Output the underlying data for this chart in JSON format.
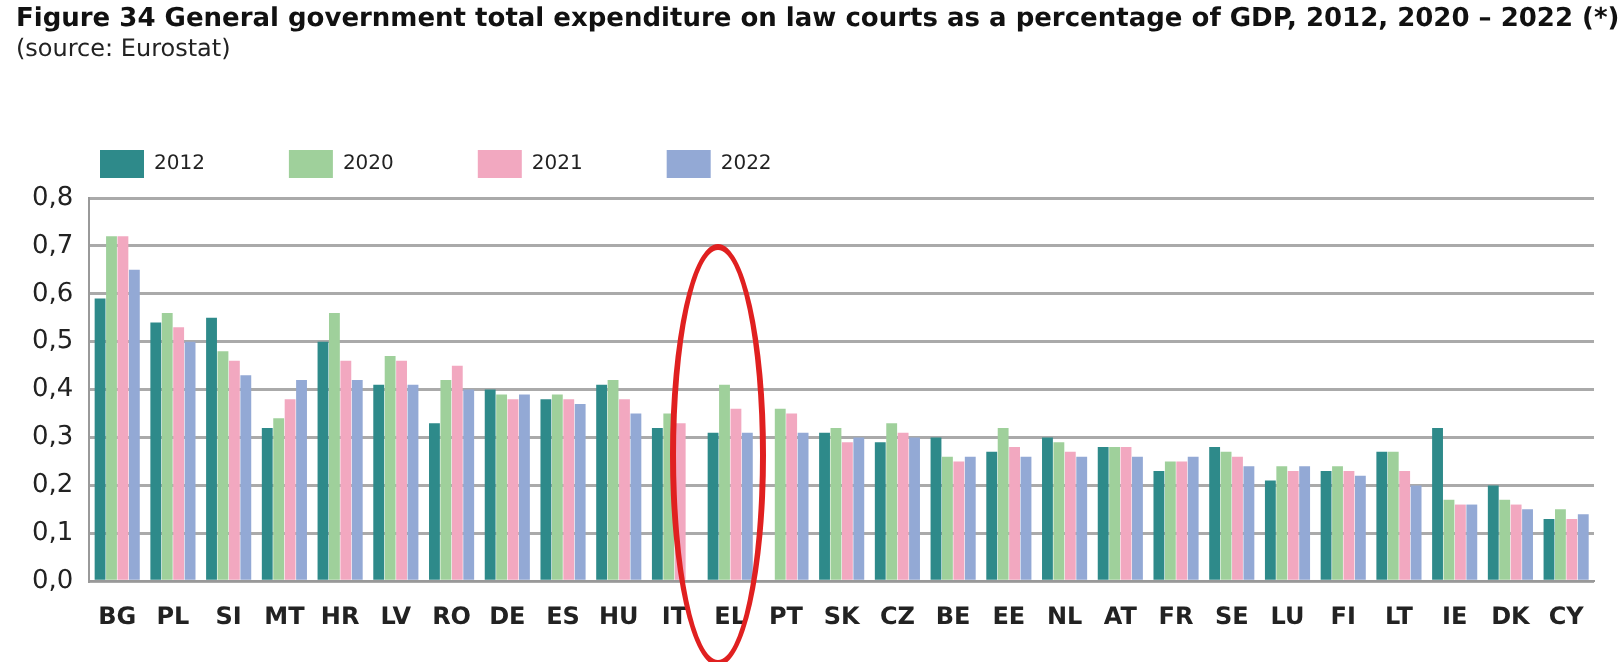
{
  "chart_data": {
    "type": "bar",
    "title": "Figure 34 General government total expenditure on law courts as a percentage of GDP, 2012, 2020 – 2022 (*)",
    "subtitle": "(source: Eurostat)",
    "categories": [
      "BG",
      "PL",
      "SI",
      "MT",
      "HR",
      "LV",
      "RO",
      "DE",
      "ES",
      "HU",
      "IT",
      "EL",
      "PT",
      "SK",
      "CZ",
      "BE",
      "EE",
      "NL",
      "AT",
      "FR",
      "SE",
      "LU",
      "FI",
      "LT",
      "IE",
      "DK",
      "CY"
    ],
    "series": [
      {
        "name": "2012",
        "color": "#2e8a8a",
        "values": [
          0.59,
          0.54,
          0.55,
          0.32,
          0.5,
          0.41,
          0.33,
          0.4,
          0.38,
          0.41,
          0.32,
          0.31,
          null,
          0.31,
          0.29,
          0.3,
          0.27,
          0.3,
          0.28,
          0.23,
          0.28,
          0.21,
          0.23,
          0.27,
          0.32,
          0.2,
          0.13
        ]
      },
      {
        "name": "2020",
        "color": "#9fd09b",
        "values": [
          0.72,
          0.56,
          0.48,
          0.34,
          0.56,
          0.47,
          0.42,
          0.39,
          0.39,
          0.42,
          0.35,
          0.41,
          0.36,
          0.32,
          0.33,
          0.26,
          0.32,
          0.29,
          0.28,
          0.25,
          0.27,
          0.24,
          0.24,
          0.27,
          0.17,
          0.17,
          0.15
        ]
      },
      {
        "name": "2021",
        "color": "#f2a8c0",
        "values": [
          0.72,
          0.53,
          0.46,
          0.38,
          0.46,
          0.46,
          0.45,
          0.38,
          0.38,
          0.38,
          0.33,
          0.36,
          0.35,
          0.29,
          0.31,
          0.25,
          0.28,
          0.27,
          0.28,
          0.25,
          0.26,
          0.23,
          0.23,
          0.23,
          0.16,
          0.16,
          0.13
        ]
      },
      {
        "name": "2022",
        "color": "#93a9d5",
        "values": [
          0.65,
          0.5,
          0.43,
          0.42,
          0.42,
          0.41,
          0.4,
          0.39,
          0.37,
          0.35,
          null,
          0.31,
          0.31,
          0.3,
          0.3,
          0.26,
          0.26,
          0.26,
          0.26,
          0.26,
          0.24,
          0.24,
          0.22,
          0.2,
          0.16,
          0.15,
          0.14
        ]
      }
    ],
    "ylim": [
      0,
      0.8
    ],
    "yticks": [
      {
        "value": 0,
        "label": "0,0"
      },
      {
        "value": 0.1,
        "label": "0,1"
      },
      {
        "value": 0.2,
        "label": "0,2"
      },
      {
        "value": 0.3,
        "label": "0,3"
      },
      {
        "value": 0.4,
        "label": "0,4"
      },
      {
        "value": 0.5,
        "label": "0,5"
      },
      {
        "value": 0.6,
        "label": "0,6"
      },
      {
        "value": 0.7,
        "label": "0,7"
      },
      {
        "value": 0.8,
        "label": "0,8"
      }
    ],
    "grid": "y",
    "legend": "top left"
  }
}
